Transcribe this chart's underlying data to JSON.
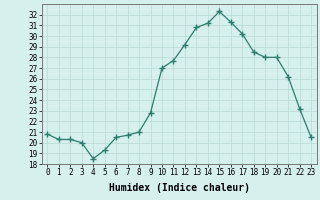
{
  "xlabel": "Humidex (Indice chaleur)",
  "x": [
    0,
    1,
    2,
    3,
    4,
    5,
    6,
    7,
    8,
    9,
    10,
    11,
    12,
    13,
    14,
    15,
    16,
    17,
    18,
    19,
    20,
    21,
    22,
    23
  ],
  "y": [
    20.8,
    20.3,
    20.3,
    20.0,
    18.5,
    19.3,
    20.5,
    20.7,
    21.0,
    22.8,
    27.0,
    27.7,
    29.2,
    30.8,
    31.2,
    32.3,
    31.3,
    30.2,
    28.5,
    28.0,
    28.0,
    26.2,
    23.2,
    20.5
  ],
  "line_color": "#2d7d6e",
  "marker": "+",
  "bg_color": "#d6f0ee",
  "grid_color": "#b8d8d4",
  "ylim": [
    18,
    33
  ],
  "yticks": [
    18,
    19,
    20,
    21,
    22,
    23,
    24,
    25,
    26,
    27,
    28,
    29,
    30,
    31,
    32
  ],
  "xticks": [
    0,
    1,
    2,
    3,
    4,
    5,
    6,
    7,
    8,
    9,
    10,
    11,
    12,
    13,
    14,
    15,
    16,
    17,
    18,
    19,
    20,
    21,
    22,
    23
  ],
  "tick_fontsize": 5.5,
  "xlabel_fontsize": 7.0,
  "label_color": "#000000",
  "xlim": [
    -0.5,
    23.5
  ]
}
